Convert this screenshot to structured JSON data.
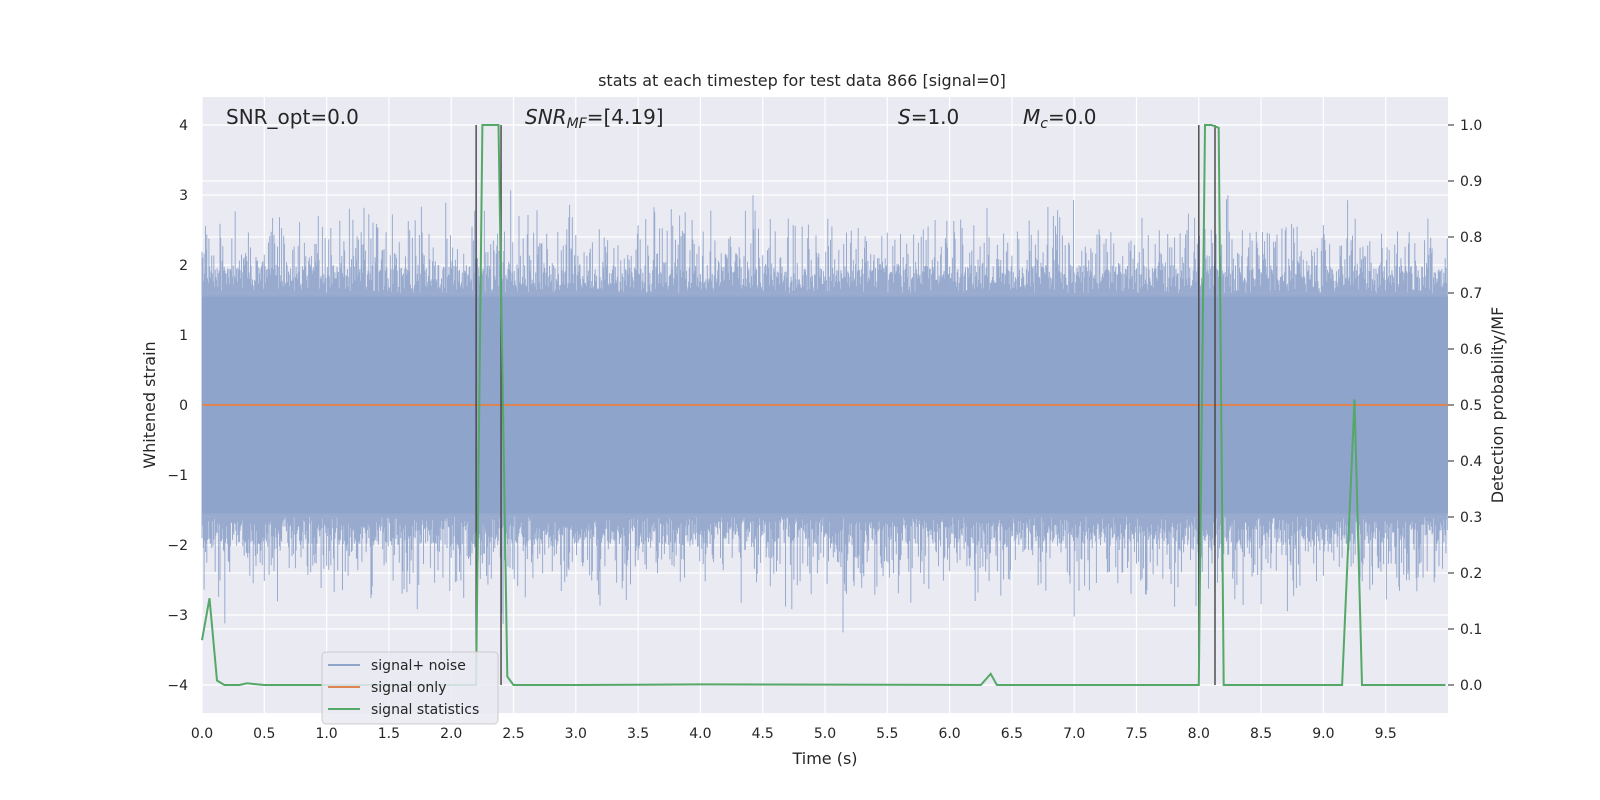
{
  "chart_data": {
    "type": "line",
    "title": "stats at each timestep for test data 866 [signal=0]",
    "xlabel": "Time (s)",
    "ylabel_left": "Whitened strain",
    "ylabel_right": "Detection probability/MF",
    "xlim": [
      0,
      10
    ],
    "ylim_left": [
      -4.4,
      4.4
    ],
    "ylim_right": [
      -0.05,
      1.05
    ],
    "grid": true,
    "legend_position": "lower-left",
    "x_ticks": [
      "0.0",
      "0.5",
      "1.0",
      "1.5",
      "2.0",
      "2.5",
      "3.0",
      "3.5",
      "4.0",
      "4.5",
      "5.0",
      "5.5",
      "6.0",
      "6.5",
      "7.0",
      "7.5",
      "8.0",
      "8.5",
      "9.0",
      "9.5"
    ],
    "y_ticks_left": [
      "−4",
      "−3",
      "−2",
      "−1",
      "0",
      "1",
      "2",
      "3",
      "4"
    ],
    "y_ticks_right": [
      "0.0",
      "0.1",
      "0.2",
      "0.3",
      "0.4",
      "0.5",
      "0.6",
      "0.7",
      "0.8",
      "0.9",
      "1.0"
    ],
    "annotations": {
      "snr_opt": "SNR_opt=0.0",
      "snr_mf_prefix": "SNR",
      "snr_mf_sub": "MF",
      "snr_mf_value": "=[4.19]",
      "s_var": "S",
      "s_value": "=1.0",
      "mc_var": "M",
      "mc_sub": "c",
      "mc_value": "=0.0"
    },
    "series": [
      {
        "name": "signal+ noise",
        "color": "#8fa4cb",
        "axis": "left",
        "description_values": "noise envelope approximately ±2 with spikes to ±4",
        "envelope": {
          "x": [
            0,
            10
          ],
          "upper": 2.0,
          "lower": -2.0
        }
      },
      {
        "name": "signal only",
        "color": "#dd8452",
        "axis": "left",
        "x": [
          0,
          10
        ],
        "y": [
          0,
          0
        ]
      },
      {
        "name": "signal statistics",
        "color": "#55a868",
        "axis": "right",
        "x": [
          0.0,
          0.06,
          0.12,
          0.18,
          0.3,
          0.36,
          0.5,
          2.15,
          2.2,
          2.25,
          2.38,
          2.45,
          2.5,
          3.0,
          4.0,
          6.25,
          6.33,
          6.38,
          6.5,
          7.0,
          8.0,
          8.05,
          8.1,
          8.16,
          8.2,
          8.5,
          9.15,
          9.25,
          9.31,
          9.5,
          9.98
        ],
        "y": [
          0.08,
          0.155,
          0.008,
          0.0,
          0.0,
          0.003,
          0.0,
          0.0,
          0.0,
          1.0,
          1.0,
          0.015,
          0.0,
          0.0,
          0.001,
          0.0,
          0.02,
          0.0,
          0.0,
          0.0,
          0.0,
          1.0,
          1.0,
          0.995,
          0.0,
          0.0,
          0.0,
          0.51,
          0.0,
          0.0,
          0.0
        ]
      }
    ],
    "vertical_lines": [
      {
        "x": 2.2,
        "color": "#444444"
      },
      {
        "x": 2.4,
        "color": "#444444"
      },
      {
        "x": 8.0,
        "color": "#444444"
      },
      {
        "x": 8.13,
        "color": "#444444"
      }
    ],
    "legend": [
      "signal+ noise",
      "signal only",
      "signal statistics"
    ]
  }
}
